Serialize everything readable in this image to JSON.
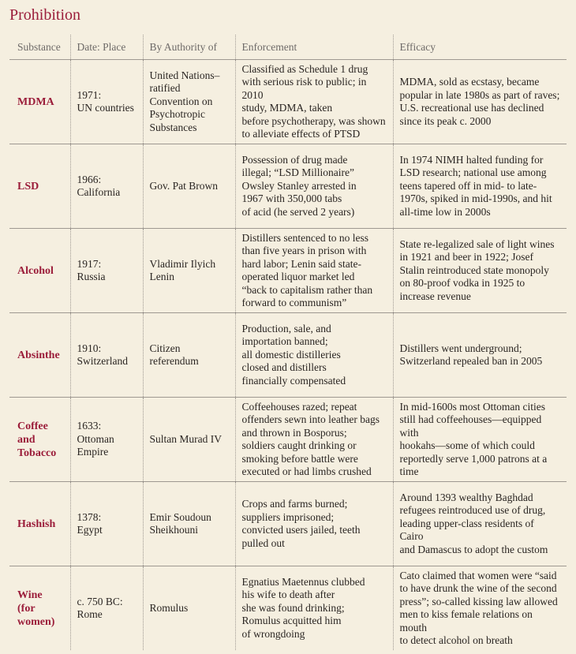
{
  "title": "Prohibition",
  "headers": [
    "Substance",
    "Date: Place",
    "By Authority of",
    "Enforcement",
    "Efficacy"
  ],
  "rows": [
    {
      "substance": "MDMA",
      "date_place": "1971:\nUN countries",
      "authority": "United Nations–\nratified\nConvention on\nPsychotropic\nSubstances",
      "enforcement": "Classified as Schedule 1 drug\nwith serious risk to public; in 2010\nstudy, MDMA, taken\nbefore psychotherapy, was shown\nto alleviate effects of PTSD",
      "efficacy": "MDMA, sold as ecstasy, became\npopular in late 1980s as part of raves;\nU.S. recreational use has declined\nsince its peak c. 2000"
    },
    {
      "substance": "LSD",
      "date_place": "1966:\nCalifornia",
      "authority": "Gov. Pat Brown",
      "enforcement": "Possession of drug made\nillegal; “LSD Millionaire”\nOwsley Stanley arrested in\n1967 with 350,000 tabs\nof acid (he served 2 years)",
      "efficacy": "In 1974 NIMH halted funding for\nLSD research; national use among\nteens tapered off in mid- to late-\n1970s, spiked in mid-1990s, and hit\nall-time low in 2000s"
    },
    {
      "substance": "Alcohol",
      "date_place": "1917:\nRussia",
      "authority": "Vladimir Ilyich\nLenin",
      "enforcement": "Distillers sentenced to no less\nthan five years in prison with\nhard labor; Lenin said state-\noperated liquor market led\n“back to capitalism rather than\nforward to communism”",
      "efficacy": "State re-legalized sale of light wines\nin 1921 and beer in 1922; Josef\nStalin reintroduced state monopoly\non 80-proof vodka in 1925 to\nincrease revenue"
    },
    {
      "substance": "Absinthe",
      "date_place": "1910:\nSwitzerland",
      "authority": "Citizen\nreferendum",
      "enforcement": "Production, sale, and\nimportation banned;\nall domestic distilleries\nclosed and distillers\nfinancially compensated",
      "efficacy": "Distillers went underground;\nSwitzerland repealed ban in 2005"
    },
    {
      "substance": "Coffee\nand\nTobacco",
      "date_place": "1633:\nOttoman\nEmpire",
      "authority": "Sultan Murad IV",
      "enforcement": "Coffeehouses razed; repeat\noffenders sewn into leather bags\nand thrown in Bosporus;\nsoldiers caught drinking or\nsmoking before battle were\nexecuted or had limbs crushed",
      "efficacy": "In mid-1600s most Ottoman cities\nstill had coffeehouses—equipped with\nhookahs—some of which could\nreportedly serve 1,000 patrons at a time"
    },
    {
      "substance": "Hashish",
      "date_place": "1378:\nEgypt",
      "authority": "Emir Soudoun\nSheikhouni",
      "enforcement": "Crops and farms burned;\nsuppliers imprisoned;\nconvicted users jailed, teeth\npulled out",
      "efficacy": "Around 1393 wealthy Baghdad\nrefugees reintroduced use of drug,\nleading upper-class residents of Cairo\nand Damascus to adopt the custom"
    },
    {
      "substance": "Wine\n(for\nwomen)",
      "date_place": "c. 750 BC:\nRome",
      "authority": "Romulus",
      "enforcement": "Egnatius Maetennus clubbed\nhis wife to death after\nshe was found drinking;\nRomulus acquitted him\nof wrongdoing",
      "efficacy": "Cato claimed that women were “said\nto have drunk the wine of the second\npress”; so-called kissing law allowed\nmen to kiss female relations on mouth\nto detect alcohol on breath"
    }
  ]
}
